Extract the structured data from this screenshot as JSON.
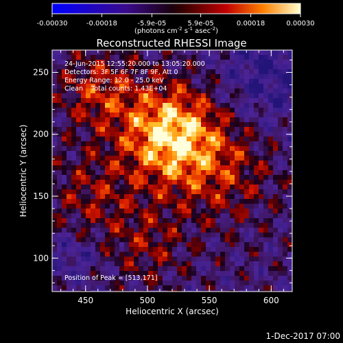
{
  "chart_data": {
    "type": "heatmap",
    "title": "Reconstructed RHESSI Image",
    "xlabel": "Heliocentric X (arcsec)",
    "ylabel": "Heliocentric Y (arcsec)",
    "xlim": [
      423,
      617
    ],
    "ylim": [
      73,
      268
    ],
    "xticks": [
      "450",
      "500",
      "550",
      "600"
    ],
    "yticks": [
      "100",
      "150",
      "200",
      "250"
    ],
    "colorbar": {
      "range": [
        -0.0003,
        0.0003
      ],
      "ticks": [
        "-0.00030",
        "-0.00018",
        "-5.9e-05",
        "5.9e-05",
        "0.00018",
        "0.00030"
      ],
      "label": "(photons cm",
      "label_exp1": "-2",
      "label_mid": " s",
      "label_exp2": "-1",
      "label_mid2": " asec",
      "label_exp3": "-2",
      "label_end": ")"
    },
    "annotations": [
      "24-Jun-2015 12:55:20.000 to 13:05:20.000",
      "Detectors: 3F 5F 6F 7F 8F 9F, Att 0",
      "Energy Range: 12.0 - 25.0 keV",
      "Clean    Total counts: 1.43E+04"
    ],
    "peak_label": "Position of Peak = [513,171]",
    "peak": [
      513,
      171
    ],
    "grid": false
  },
  "footer": {
    "date": "1-Dec-2017 07:00"
  }
}
